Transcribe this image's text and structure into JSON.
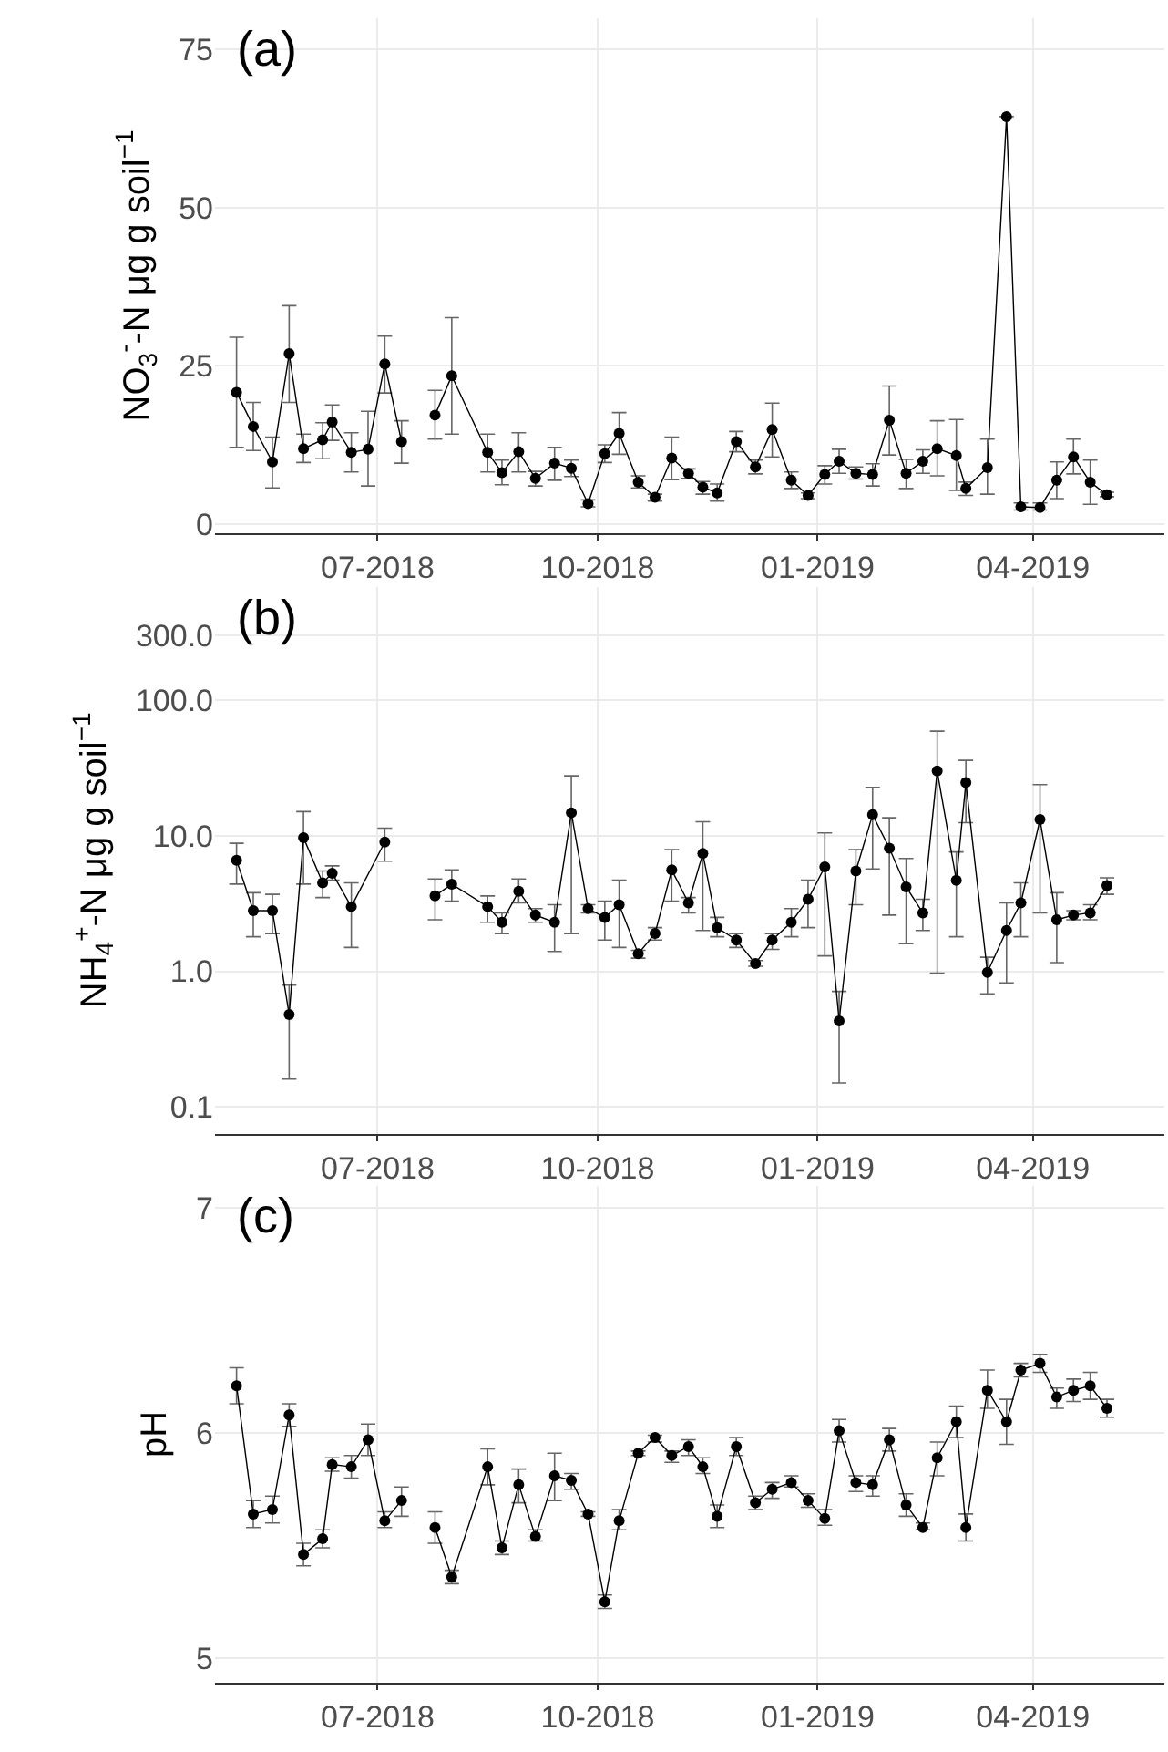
{
  "chart_data": [
    {
      "type": "line",
      "title": "(a)",
      "ylabel": "NO$_{3}$$^{-}$-N μg g soil$^{−1}$",
      "grid": true,
      "marker": "circle",
      "line_style": "solid",
      "x": [
        "2018-05-03",
        "2018-05-10",
        "2018-05-18",
        "2018-05-25",
        "2018-05-31",
        "2018-06-08",
        "2018-06-12",
        "2018-06-20",
        "2018-06-27",
        "2018-07-04",
        "2018-07-11",
        "2018-07-18",
        "2018-07-25",
        "2018-08-01",
        "2018-08-16",
        "2018-08-22",
        "2018-08-29",
        "2018-09-05",
        "2018-09-13",
        "2018-09-20",
        "2018-09-27",
        "2018-10-04",
        "2018-10-10",
        "2018-10-18",
        "2018-10-25",
        "2018-11-01",
        "2018-11-08",
        "2018-11-14",
        "2018-11-20",
        "2018-11-28",
        "2018-12-06",
        "2018-12-13",
        "2018-12-21",
        "2018-12-28",
        "2019-01-04",
        "2019-01-10",
        "2019-01-17",
        "2019-01-24",
        "2019-01-31",
        "2019-02-07",
        "2019-02-14",
        "2019-02-20",
        "2019-02-28",
        "2019-03-04",
        "2019-03-13",
        "2019-03-21",
        "2019-03-27",
        "2019-04-04",
        "2019-04-11",
        "2019-04-18",
        "2019-04-25",
        "2019-05-02"
      ],
      "xlim": [
        "2018-04-24",
        "2019-05-26"
      ],
      "xticks": [
        {
          "value": "2018-07-01",
          "label": "07-2018"
        },
        {
          "value": "2018-10-01",
          "label": "10-2018"
        },
        {
          "value": "2019-01-01",
          "label": "01-2019"
        },
        {
          "value": "2019-04-01",
          "label": "04-2019"
        }
      ],
      "ylim": [
        -1.5,
        80
      ],
      "yticks": [
        0,
        25,
        50,
        75
      ],
      "series": [
        {
          "color": "#000000",
          "values": [
            20.8,
            15.4,
            9.8,
            26.9,
            11.9,
            13.3,
            16.1,
            11.3,
            11.8,
            25.3,
            13.0,
            null,
            17.2,
            23.4,
            11.3,
            8.1,
            11.4,
            7.2,
            9.6,
            8.8,
            3.2,
            11.1,
            14.3,
            6.6,
            4.2,
            10.4,
            8.0,
            5.8,
            4.9,
            13.0,
            9.0,
            14.9,
            6.9,
            4.5,
            7.8,
            9.9,
            8.0,
            7.8,
            16.4,
            8.0,
            9.9,
            11.9,
            10.8,
            5.6,
            8.9,
            64.4,
            2.7,
            2.6,
            6.9,
            10.6,
            6.6,
            4.6
          ],
          "errors": [
            [
              12.1,
              29.5
            ],
            [
              11.6,
              19.2
            ],
            [
              5.7,
              13.7
            ],
            [
              19.2,
              34.5
            ],
            [
              9.7,
              14.2
            ],
            [
              10.3,
              16.0
            ],
            [
              13.2,
              18.8
            ],
            [
              8.2,
              14.4
            ],
            [
              6.0,
              17.8
            ],
            [
              20.7,
              29.7
            ],
            [
              9.6,
              16.3
            ],
            null,
            [
              13.4,
              21.1
            ],
            [
              14.2,
              32.6
            ],
            [
              8.2,
              14.2
            ],
            [
              6.2,
              10.1
            ],
            [
              8.2,
              14.4
            ],
            [
              6.0,
              8.3
            ],
            [
              6.9,
              12.1
            ],
            [
              7.5,
              10.1
            ],
            [
              2.7,
              3.8
            ],
            [
              9.7,
              12.5
            ],
            [
              11.0,
              17.6
            ],
            [
              5.7,
              7.6
            ],
            [
              3.6,
              4.7
            ],
            [
              7.0,
              13.7
            ],
            [
              7.2,
              8.7
            ],
            [
              4.7,
              6.7
            ],
            [
              3.6,
              6.3
            ],
            [
              11.4,
              14.6
            ],
            [
              7.9,
              10.1
            ],
            [
              10.6,
              19.1
            ],
            [
              5.6,
              8.2
            ],
            [
              4.0,
              4.9
            ],
            [
              6.3,
              9.2
            ],
            [
              8.0,
              11.8
            ],
            [
              7.1,
              9.0
            ],
            [
              6.0,
              9.5
            ],
            [
              10.9,
              21.8
            ],
            [
              5.6,
              10.2
            ],
            [
              8.0,
              11.7
            ],
            [
              7.6,
              16.3
            ],
            [
              5.3,
              16.5
            ],
            [
              4.5,
              6.6
            ],
            [
              4.7,
              13.4
            ],
            null,
            [
              2.2,
              3.3
            ],
            [
              2.2,
              3.3
            ],
            [
              4.0,
              9.8
            ],
            [
              7.9,
              13.4
            ],
            [
              3.1,
              10.1
            ],
            [
              4.3,
              5.0
            ]
          ]
        }
      ]
    },
    {
      "type": "line",
      "title": "(b)",
      "ylabel": "NH$_{4}$$^{+}$-N μg g soil$^{−1}$",
      "grid": true,
      "marker": "circle",
      "line_style": "solid",
      "log": "y",
      "x": [
        "2018-05-03",
        "2018-05-10",
        "2018-05-18",
        "2018-05-25",
        "2018-05-31",
        "2018-06-08",
        "2018-06-12",
        "2018-06-20",
        "2018-07-04",
        "2018-07-18",
        "2018-07-25",
        "2018-08-01",
        "2018-08-16",
        "2018-08-22",
        "2018-08-29",
        "2018-09-05",
        "2018-09-13",
        "2018-09-20",
        "2018-09-27",
        "2018-10-04",
        "2018-10-10",
        "2018-10-18",
        "2018-10-25",
        "2018-11-01",
        "2018-11-08",
        "2018-11-14",
        "2018-11-20",
        "2018-11-28",
        "2018-12-06",
        "2018-12-13",
        "2018-12-21",
        "2018-12-28",
        "2019-01-04",
        "2019-01-10",
        "2019-01-17",
        "2019-01-24",
        "2019-01-31",
        "2019-02-07",
        "2019-02-14",
        "2019-02-20",
        "2019-02-28",
        "2019-03-04",
        "2019-03-13",
        "2019-03-21",
        "2019-03-27",
        "2019-04-04",
        "2019-04-11",
        "2019-04-18",
        "2019-04-25",
        "2019-05-02"
      ],
      "xlim": [
        "2018-04-24",
        "2019-05-26"
      ],
      "xticks": [
        {
          "value": "2018-07-01",
          "label": "07-2018"
        },
        {
          "value": "2018-10-01",
          "label": "10-2018"
        },
        {
          "value": "2019-01-01",
          "label": "01-2019"
        },
        {
          "value": "2019-04-01",
          "label": "04-2019"
        }
      ],
      "ylim": [
        0.063,
        690
      ],
      "yticks": [
        {
          "value": 0.1,
          "label": "0.1"
        },
        {
          "value": 1,
          "label": "1.0"
        },
        {
          "value": 10,
          "label": "10.0"
        },
        {
          "value": 100,
          "label": "100.0"
        },
        {
          "value": 300,
          "label": "300.0"
        }
      ],
      "series": [
        {
          "color": "#000000",
          "values": [
            6.6,
            2.8,
            2.8,
            0.48,
            9.7,
            4.5,
            5.3,
            3.0,
            9.0,
            null,
            3.6,
            4.4,
            3.0,
            2.3,
            3.9,
            2.6,
            2.3,
            14.8,
            2.9,
            2.5,
            3.1,
            1.35,
            1.9,
            5.6,
            3.2,
            7.4,
            2.1,
            1.7,
            1.14,
            1.7,
            2.3,
            3.4,
            5.9,
            0.43,
            5.5,
            14.3,
            8.1,
            4.2,
            2.7,
            30.1,
            4.7,
            24.7,
            0.98,
            2.0,
            3.2,
            13.2,
            2.4,
            2.6,
            2.7,
            4.3
          ],
          "errors": [
            [
              4.4,
              8.8
            ],
            [
              1.8,
              3.8
            ],
            [
              1.9,
              3.7
            ],
            [
              0.16,
              0.79
            ],
            [
              4.4,
              15.1
            ],
            [
              3.5,
              5.5
            ],
            [
              4.7,
              6.0
            ],
            [
              1.5,
              4.5
            ],
            [
              6.5,
              11.4
            ],
            null,
            [
              2.4,
              4.8
            ],
            [
              3.3,
              5.6
            ],
            [
              2.3,
              3.6
            ],
            [
              1.9,
              2.7
            ],
            [
              3.2,
              4.8
            ],
            [
              2.3,
              2.9
            ],
            [
              1.4,
              3.1
            ],
            [
              1.9,
              27.7
            ],
            [
              2.7,
              3.1
            ],
            [
              1.7,
              3.3
            ],
            [
              1.5,
              4.7
            ],
            [
              1.25,
              1.43
            ],
            [
              1.7,
              2.1
            ],
            [
              3.3,
              7.9
            ],
            [
              2.7,
              3.5
            ],
            [
              2.0,
              12.7
            ],
            [
              1.8,
              2.5
            ],
            [
              1.5,
              1.9
            ],
            [
              1.09,
              1.2
            ],
            [
              1.45,
              1.9
            ],
            [
              1.8,
              2.9
            ],
            [
              2.1,
              4.7
            ],
            [
              1.3,
              10.5
            ],
            [
              0.15,
              0.71
            ],
            [
              3.1,
              7.9
            ],
            [
              5.7,
              22.8
            ],
            [
              2.6,
              13.6
            ],
            [
              1.6,
              6.8
            ],
            [
              2.0,
              3.4
            ],
            [
              0.97,
              59.2
            ],
            [
              1.8,
              7.6
            ],
            [
              12.5,
              36.1
            ],
            [
              0.68,
              1.27
            ],
            [
              0.82,
              3.2
            ],
            [
              1.8,
              4.5
            ],
            [
              2.7,
              23.9
            ],
            [
              1.16,
              3.8
            ],
            [
              2.4,
              2.8
            ],
            [
              2.4,
              3.1
            ],
            [
              3.7,
              4.9
            ]
          ]
        }
      ]
    },
    {
      "type": "line",
      "title": "(c)",
      "ylabel": "pH",
      "grid": true,
      "marker": "circle",
      "line_style": "solid",
      "x": [
        "2018-05-03",
        "2018-05-10",
        "2018-05-18",
        "2018-05-25",
        "2018-05-31",
        "2018-06-08",
        "2018-06-12",
        "2018-06-20",
        "2018-06-27",
        "2018-07-04",
        "2018-07-11",
        "2018-07-18",
        "2018-07-25",
        "2018-08-01",
        "2018-08-16",
        "2018-08-22",
        "2018-08-29",
        "2018-09-05",
        "2018-09-13",
        "2018-09-20",
        "2018-09-27",
        "2018-10-04",
        "2018-10-10",
        "2018-10-18",
        "2018-10-25",
        "2018-11-01",
        "2018-11-08",
        "2018-11-14",
        "2018-11-20",
        "2018-11-28",
        "2018-12-06",
        "2018-12-13",
        "2018-12-21",
        "2018-12-28",
        "2019-01-04",
        "2019-01-10",
        "2019-01-17",
        "2019-01-24",
        "2019-01-31",
        "2019-02-07",
        "2019-02-14",
        "2019-02-20",
        "2019-02-28",
        "2019-03-04",
        "2019-03-13",
        "2019-03-21",
        "2019-03-27",
        "2019-04-04",
        "2019-04-11",
        "2019-04-18",
        "2019-04-25",
        "2019-05-02"
      ],
      "xlim": [
        "2018-04-24",
        "2019-05-26"
      ],
      "xticks": [
        {
          "value": "2018-07-01",
          "label": "07-2018"
        },
        {
          "value": "2018-10-01",
          "label": "10-2018"
        },
        {
          "value": "2019-01-01",
          "label": "01-2019"
        },
        {
          "value": "2019-04-01",
          "label": "04-2019"
        }
      ],
      "ylim": [
        4.89,
        7.1
      ],
      "yticks": [
        5,
        6,
        7
      ],
      "series": [
        {
          "color": "#000000",
          "values": [
            6.21,
            5.64,
            5.66,
            6.08,
            5.46,
            5.53,
            5.86,
            5.85,
            5.97,
            5.61,
            5.7,
            null,
            5.58,
            5.36,
            5.85,
            5.49,
            5.77,
            5.54,
            5.81,
            5.79,
            5.64,
            5.25,
            5.61,
            5.91,
            5.98,
            5.9,
            5.94,
            5.85,
            5.63,
            5.94,
            5.69,
            5.75,
            5.78,
            5.7,
            5.62,
            6.01,
            5.78,
            5.77,
            5.97,
            5.68,
            5.58,
            5.89,
            6.05,
            5.58,
            6.19,
            6.05,
            6.28,
            6.31,
            6.16,
            6.19,
            6.21,
            6.11
          ],
          "errors": [
            [
              6.13,
              6.29
            ],
            [
              5.58,
              5.7
            ],
            [
              5.6,
              5.72
            ],
            [
              6.03,
              6.13
            ],
            [
              5.41,
              5.51
            ],
            [
              5.49,
              5.57
            ],
            [
              5.83,
              5.89
            ],
            [
              5.8,
              5.9
            ],
            [
              5.9,
              6.04
            ],
            [
              5.58,
              5.65
            ],
            [
              5.63,
              5.76
            ],
            null,
            [
              5.51,
              5.65
            ],
            [
              5.33,
              5.39
            ],
            [
              5.77,
              5.93
            ],
            [
              5.46,
              5.52
            ],
            [
              5.69,
              5.84
            ],
            [
              5.52,
              5.57
            ],
            [
              5.7,
              5.91
            ],
            [
              5.75,
              5.82
            ],
            [
              5.63,
              5.65
            ],
            [
              5.22,
              5.28
            ],
            [
              5.57,
              5.66
            ],
            [
              5.9,
              5.92
            ],
            [
              5.96,
              5.99
            ],
            [
              5.87,
              5.92
            ],
            [
              5.9,
              5.97
            ],
            [
              5.82,
              5.89
            ],
            [
              5.58,
              5.68
            ],
            [
              5.9,
              5.98
            ],
            [
              5.66,
              5.72
            ],
            [
              5.71,
              5.78
            ],
            [
              5.76,
              5.81
            ],
            [
              5.67,
              5.73
            ],
            [
              5.59,
              5.66
            ],
            [
              5.96,
              6.06
            ],
            [
              5.74,
              5.81
            ],
            [
              5.72,
              5.81
            ],
            [
              5.92,
              6.02
            ],
            [
              5.63,
              5.73
            ],
            [
              5.57,
              5.6
            ],
            [
              5.81,
              5.96
            ],
            [
              5.98,
              6.12
            ],
            [
              5.52,
              5.64
            ],
            [
              6.11,
              6.28
            ],
            [
              5.95,
              6.15
            ],
            [
              6.25,
              6.31
            ],
            [
              6.27,
              6.35
            ],
            [
              6.11,
              6.2
            ],
            [
              6.14,
              6.24
            ],
            [
              6.15,
              6.27
            ],
            [
              6.07,
              6.15
            ]
          ]
        }
      ]
    }
  ]
}
